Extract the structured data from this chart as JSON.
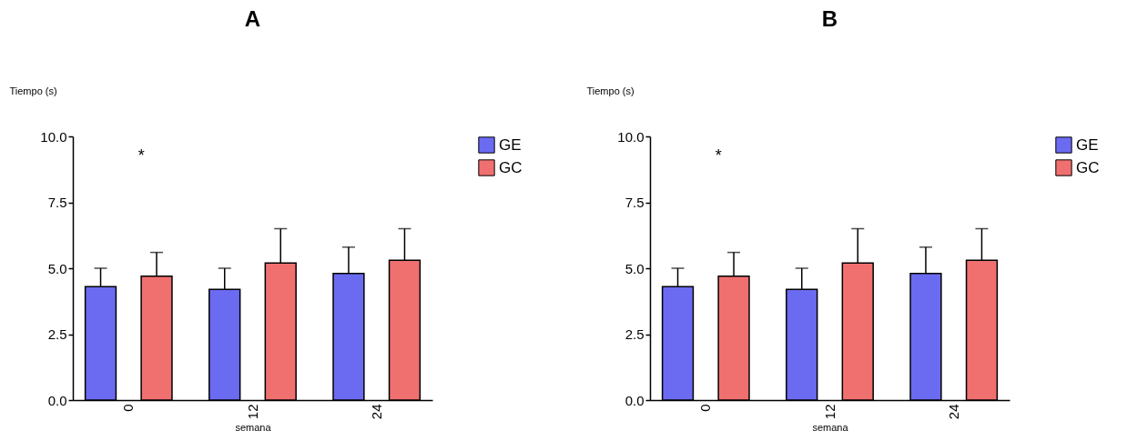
{
  "chart_data": [
    {
      "type": "bar",
      "title": "A",
      "xlabel": "semana",
      "ylabel": "Tiempo (s)",
      "categories": [
        "0",
        "12",
        "24"
      ],
      "series": [
        {
          "name": "GE",
          "color": "#6b6bf2",
          "values": [
            4.3,
            4.2,
            4.8
          ],
          "errors": [
            [
              4.3,
              5.0
            ],
            [
              4.2,
              5.0
            ],
            [
              4.8,
              5.8
            ]
          ]
        },
        {
          "name": "GC",
          "color": "#f07070",
          "values": [
            4.7,
            5.2,
            5.3
          ],
          "errors": [
            [
              4.7,
              5.6
            ],
            [
              5.2,
              6.5
            ],
            [
              5.3,
              6.5
            ]
          ]
        }
      ],
      "ylim": [
        0,
        10
      ],
      "yticks": [
        {
          "value": 0,
          "label": "0.0"
        },
        {
          "value": 2.5,
          "label": "2.5"
        },
        {
          "value": 5,
          "label": "5.0"
        },
        {
          "value": 7.5,
          "label": "7.5"
        },
        {
          "value": 10,
          "label": "10.0"
        }
      ],
      "grid": false,
      "legend": "top right",
      "annotations": [
        "*"
      ]
    },
    {
      "type": "bar",
      "title": "B",
      "xlabel": "semana",
      "ylabel": "Tiempo (s)",
      "categories": [
        "0",
        "12",
        "24"
      ],
      "series": [
        {
          "name": "GE",
          "color": "#6b6bf2",
          "values": [
            4.3,
            4.2,
            4.8
          ],
          "errors": [
            [
              4.3,
              5.0
            ],
            [
              4.2,
              5.0
            ],
            [
              4.8,
              5.8
            ]
          ]
        },
        {
          "name": "GC",
          "color": "#f07070",
          "values": [
            4.7,
            5.2,
            5.3
          ],
          "errors": [
            [
              4.7,
              5.6
            ],
            [
              5.2,
              6.5
            ],
            [
              5.3,
              6.5
            ]
          ]
        }
      ],
      "ylim": [
        0,
        10
      ],
      "yticks": [
        {
          "value": 0,
          "label": "0.0"
        },
        {
          "value": 2.5,
          "label": "2.5"
        },
        {
          "value": 5,
          "label": "5.0"
        },
        {
          "value": 7.5,
          "label": "7.5"
        },
        {
          "value": 10,
          "label": "10.0"
        }
      ],
      "grid": false,
      "legend": "top right",
      "annotations": [
        "*"
      ]
    }
  ]
}
